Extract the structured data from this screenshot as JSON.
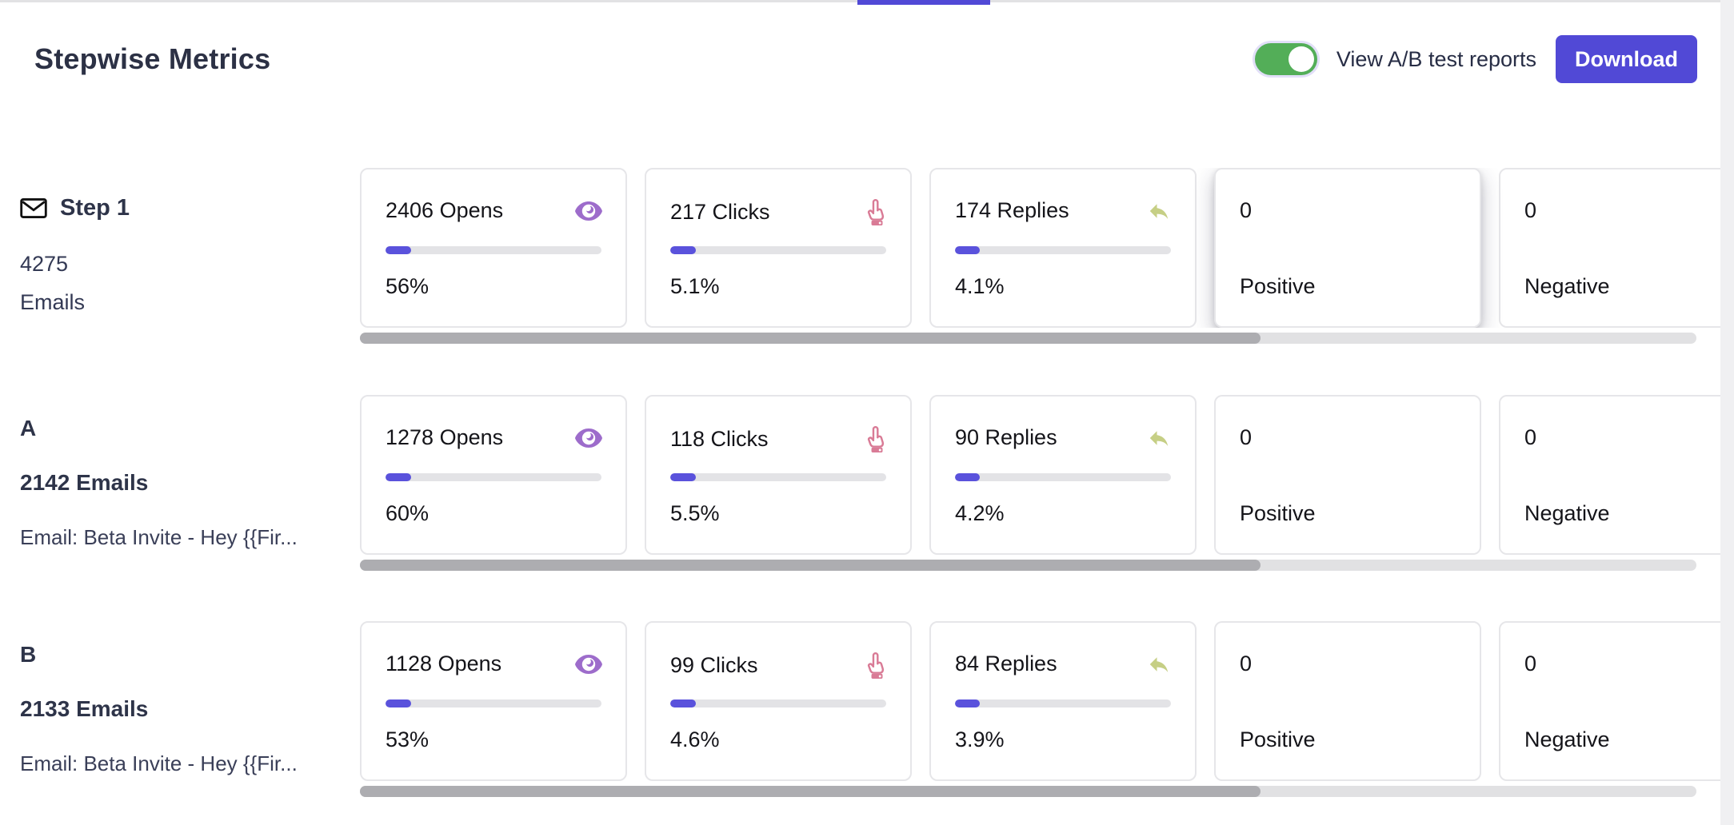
{
  "header": {
    "title": "Stepwise Metrics",
    "ab_toggle": {
      "label": "View A/B test reports",
      "state": "on"
    },
    "download_button": "Download"
  },
  "colors": {
    "accent": "#5149D6",
    "progress-fill": "#5A52DC",
    "toggle-green": "#53AE58",
    "eye": "#9D6CCB",
    "click": "#D97B96",
    "reply": "#C6CF85",
    "track": "#E3E3E6",
    "scroll-thumb": "#ADADB1",
    "scroll-track": "#E1E1E3"
  },
  "rows": [
    {
      "label": {
        "title": "Step 1",
        "line2": "4275",
        "line3": "Emails"
      },
      "cards": [
        {
          "metric": "2406 Opens",
          "icon": "eye-icon",
          "percent": "56%",
          "bar": 0.12
        },
        {
          "metric": "217 Clicks",
          "icon": "click-icon",
          "percent": "5.1%",
          "bar": 0.12
        },
        {
          "metric": "174 Replies",
          "icon": "reply-icon",
          "percent": "4.1%",
          "bar": 0.115
        },
        {
          "metric": "0",
          "label": "Positive",
          "elevated": true
        },
        {
          "metric": "0",
          "label": "Negative"
        }
      ]
    },
    {
      "label": {
        "title": "A",
        "line2": "2142 Emails",
        "line3": "Email: Beta Invite - Hey {{Fir..."
      },
      "cards": [
        {
          "metric": "1278 Opens",
          "icon": "eye-icon",
          "percent": "60%",
          "bar": 0.12
        },
        {
          "metric": "118 Clicks",
          "icon": "click-icon",
          "percent": "5.5%",
          "bar": 0.12
        },
        {
          "metric": "90 Replies",
          "icon": "reply-icon",
          "percent": "4.2%",
          "bar": 0.115
        },
        {
          "metric": "0",
          "label": "Positive"
        },
        {
          "metric": "0",
          "label": "Negative"
        }
      ]
    },
    {
      "label": {
        "title": "B",
        "line2": "2133 Emails",
        "line3": "Email: Beta Invite - Hey {{Fir..."
      },
      "cards": [
        {
          "metric": "1128 Opens",
          "icon": "eye-icon",
          "percent": "53%",
          "bar": 0.12
        },
        {
          "metric": "99 Clicks",
          "icon": "click-icon",
          "percent": "4.6%",
          "bar": 0.12
        },
        {
          "metric": "84 Replies",
          "icon": "reply-icon",
          "percent": "3.9%",
          "bar": 0.115
        },
        {
          "metric": "0",
          "label": "Positive"
        },
        {
          "metric": "0",
          "label": "Negative"
        }
      ]
    }
  ]
}
